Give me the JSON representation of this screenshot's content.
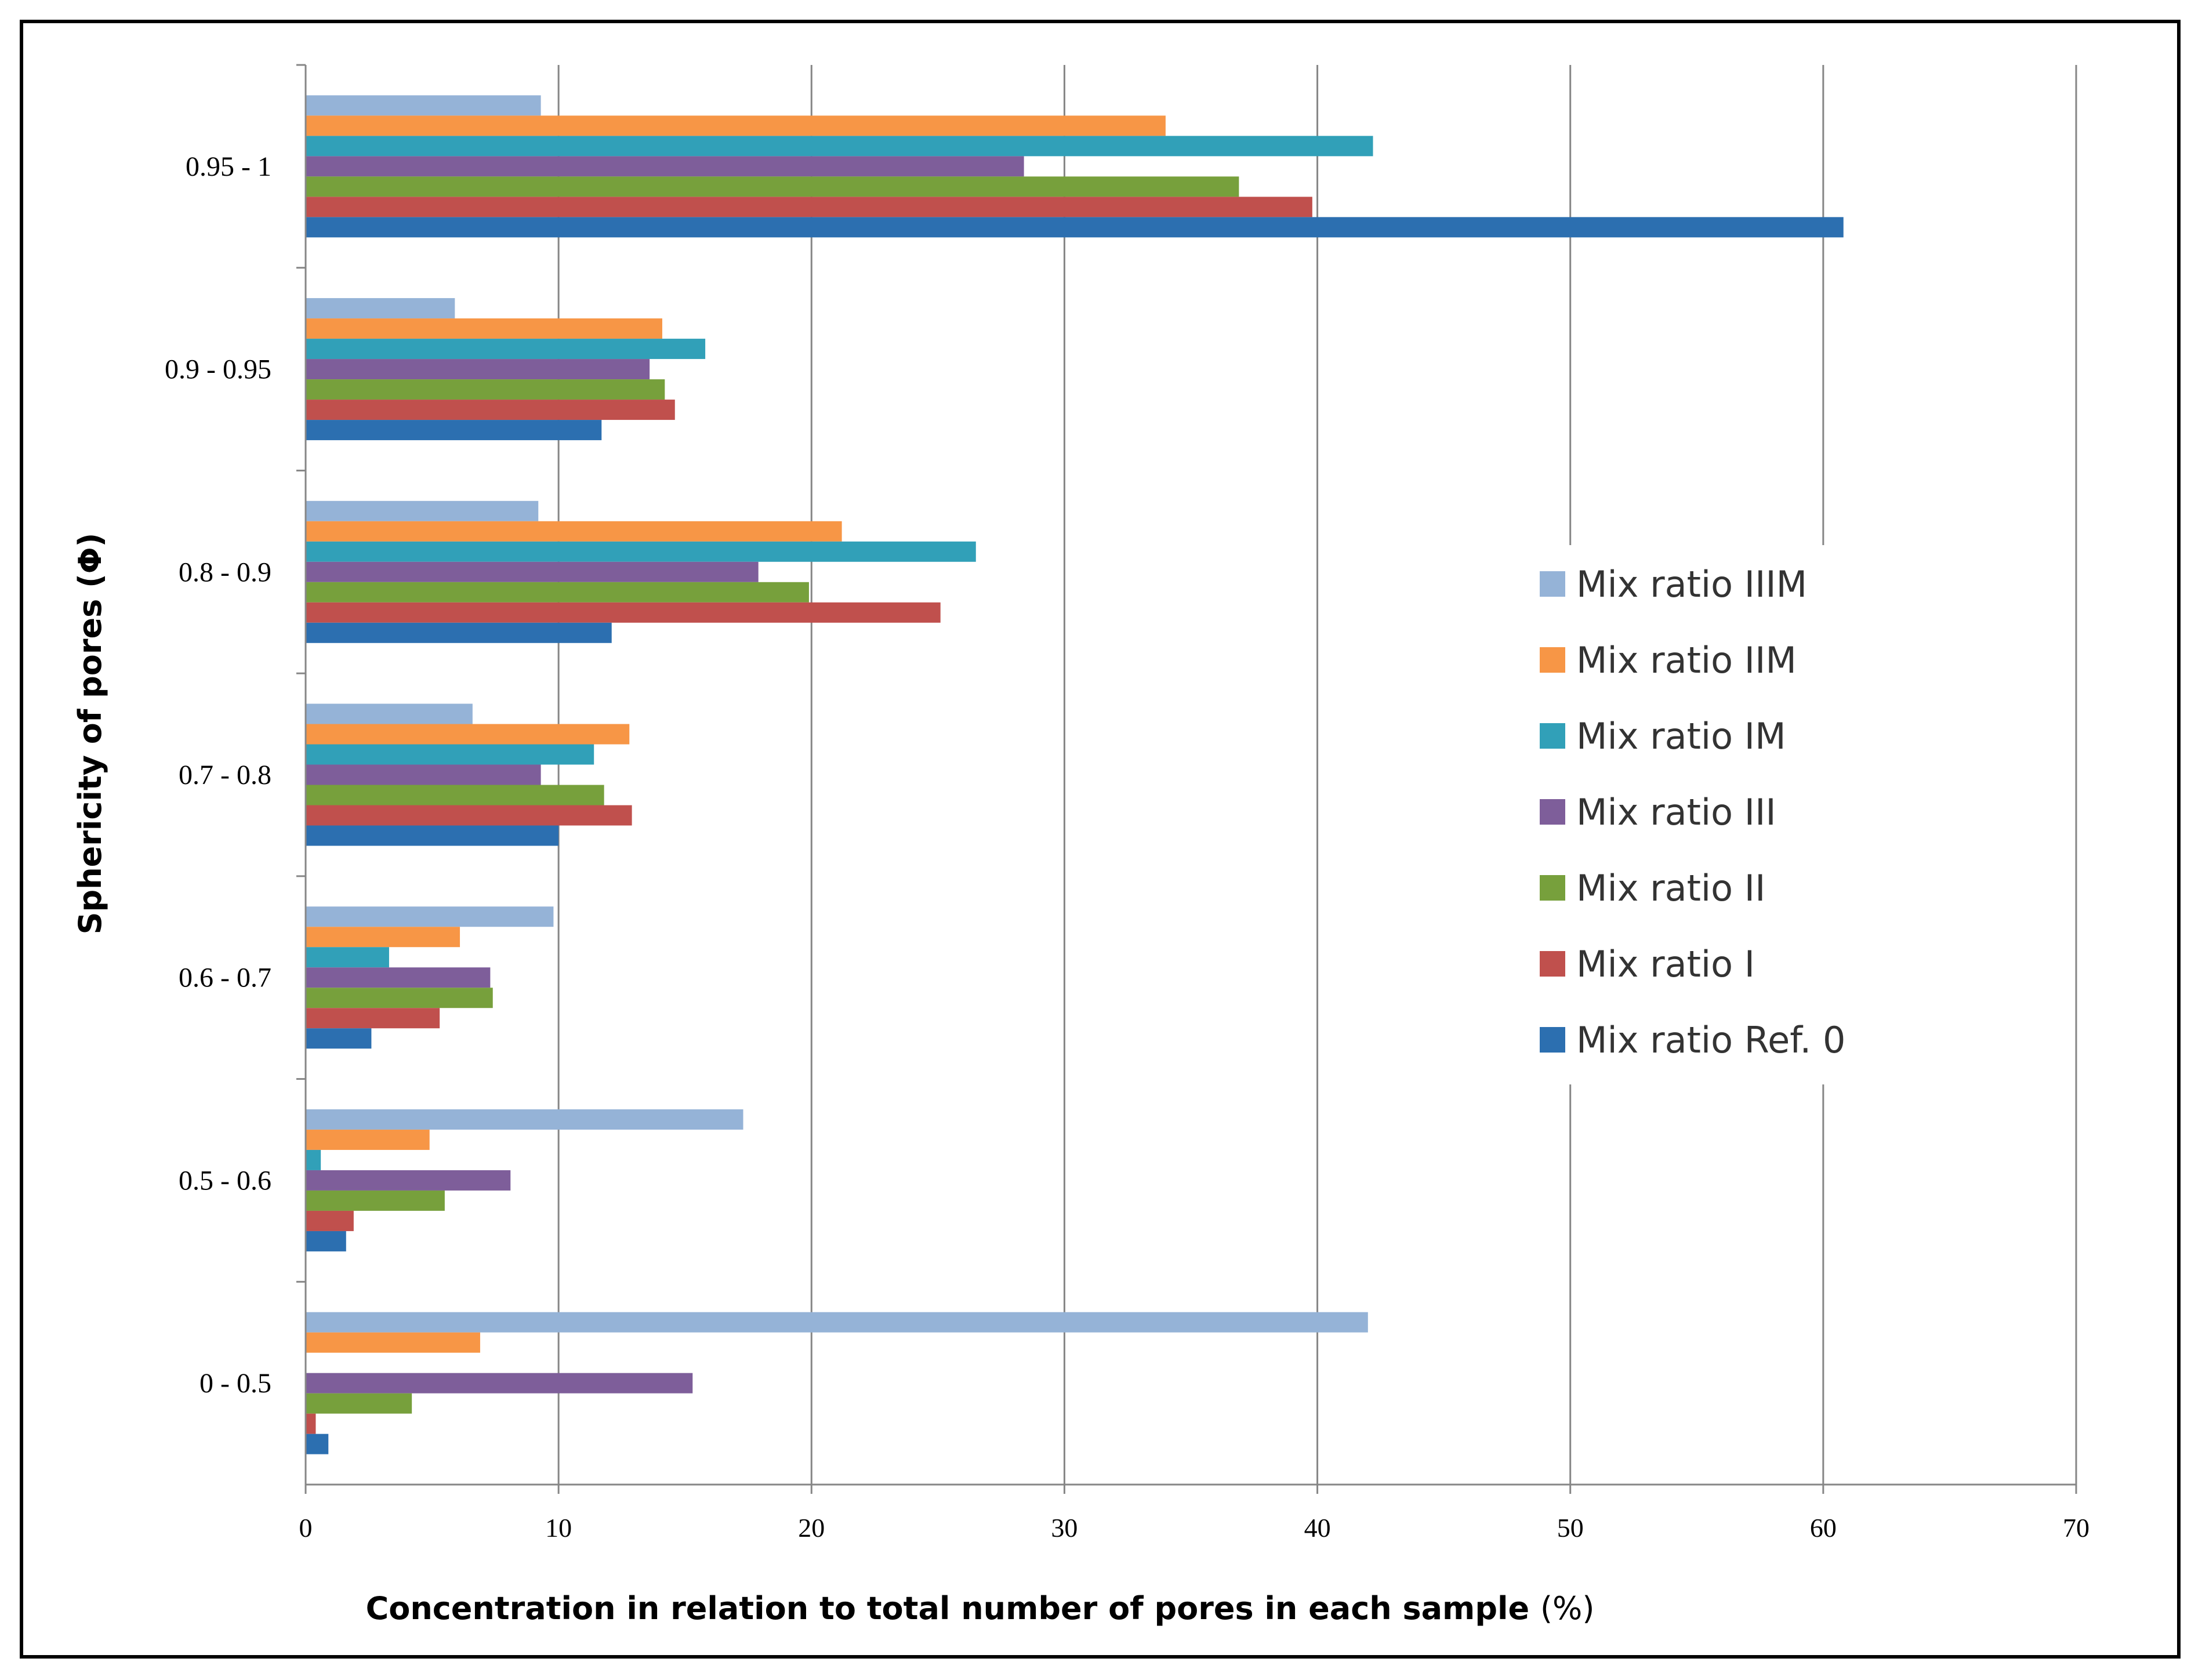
{
  "chart_data": {
    "type": "bar",
    "orientation": "horizontal",
    "title": "",
    "xlabel": "Concentration in relation to total number of pores in each sample",
    "xlabel_unit": "(%)",
    "ylabel": "Sphericity of pores  (Φ)",
    "xlim": [
      0,
      70
    ],
    "xticks": [
      0,
      10,
      20,
      30,
      40,
      50,
      60,
      70
    ],
    "grid": "vertical",
    "legend_position": "center-right",
    "categories": [
      "0.95 - 1",
      "0.9 - 0.95",
      "0.8 - 0.9",
      "0.7 - 0.8",
      "0.6 - 0.7",
      "0.5 - 0.6",
      "0 - 0.5"
    ],
    "series": [
      {
        "name": "Mix ratio IIIM",
        "color": "#95B3D7",
        "values": [
          9.3,
          5.9,
          9.2,
          6.6,
          9.8,
          17.3,
          42.0
        ]
      },
      {
        "name": "Mix ratio IIM",
        "color": "#F79646",
        "values": [
          34.0,
          14.1,
          21.2,
          12.8,
          6.1,
          4.9,
          6.9
        ]
      },
      {
        "name": "Mix ratio IM",
        "color": "#31A0B8",
        "values": [
          42.2,
          15.8,
          26.5,
          11.4,
          3.3,
          0.6,
          0
        ]
      },
      {
        "name": "Mix ratio III",
        "color": "#7E5E9A",
        "values": [
          28.4,
          13.6,
          17.9,
          9.3,
          7.3,
          8.1,
          15.3
        ]
      },
      {
        "name": "Mix ratio II",
        "color": "#77A03C",
        "values": [
          36.9,
          14.2,
          19.9,
          11.8,
          7.4,
          5.5,
          4.2
        ]
      },
      {
        "name": "Mix ratio I",
        "color": "#C0504D",
        "values": [
          39.8,
          14.6,
          25.1,
          12.9,
          5.3,
          1.9,
          0.4
        ]
      },
      {
        "name": "Mix ratio Ref. 0",
        "color": "#2C6FB0",
        "values": [
          60.8,
          11.7,
          12.1,
          10.0,
          2.6,
          1.6,
          0.9
        ]
      }
    ]
  }
}
